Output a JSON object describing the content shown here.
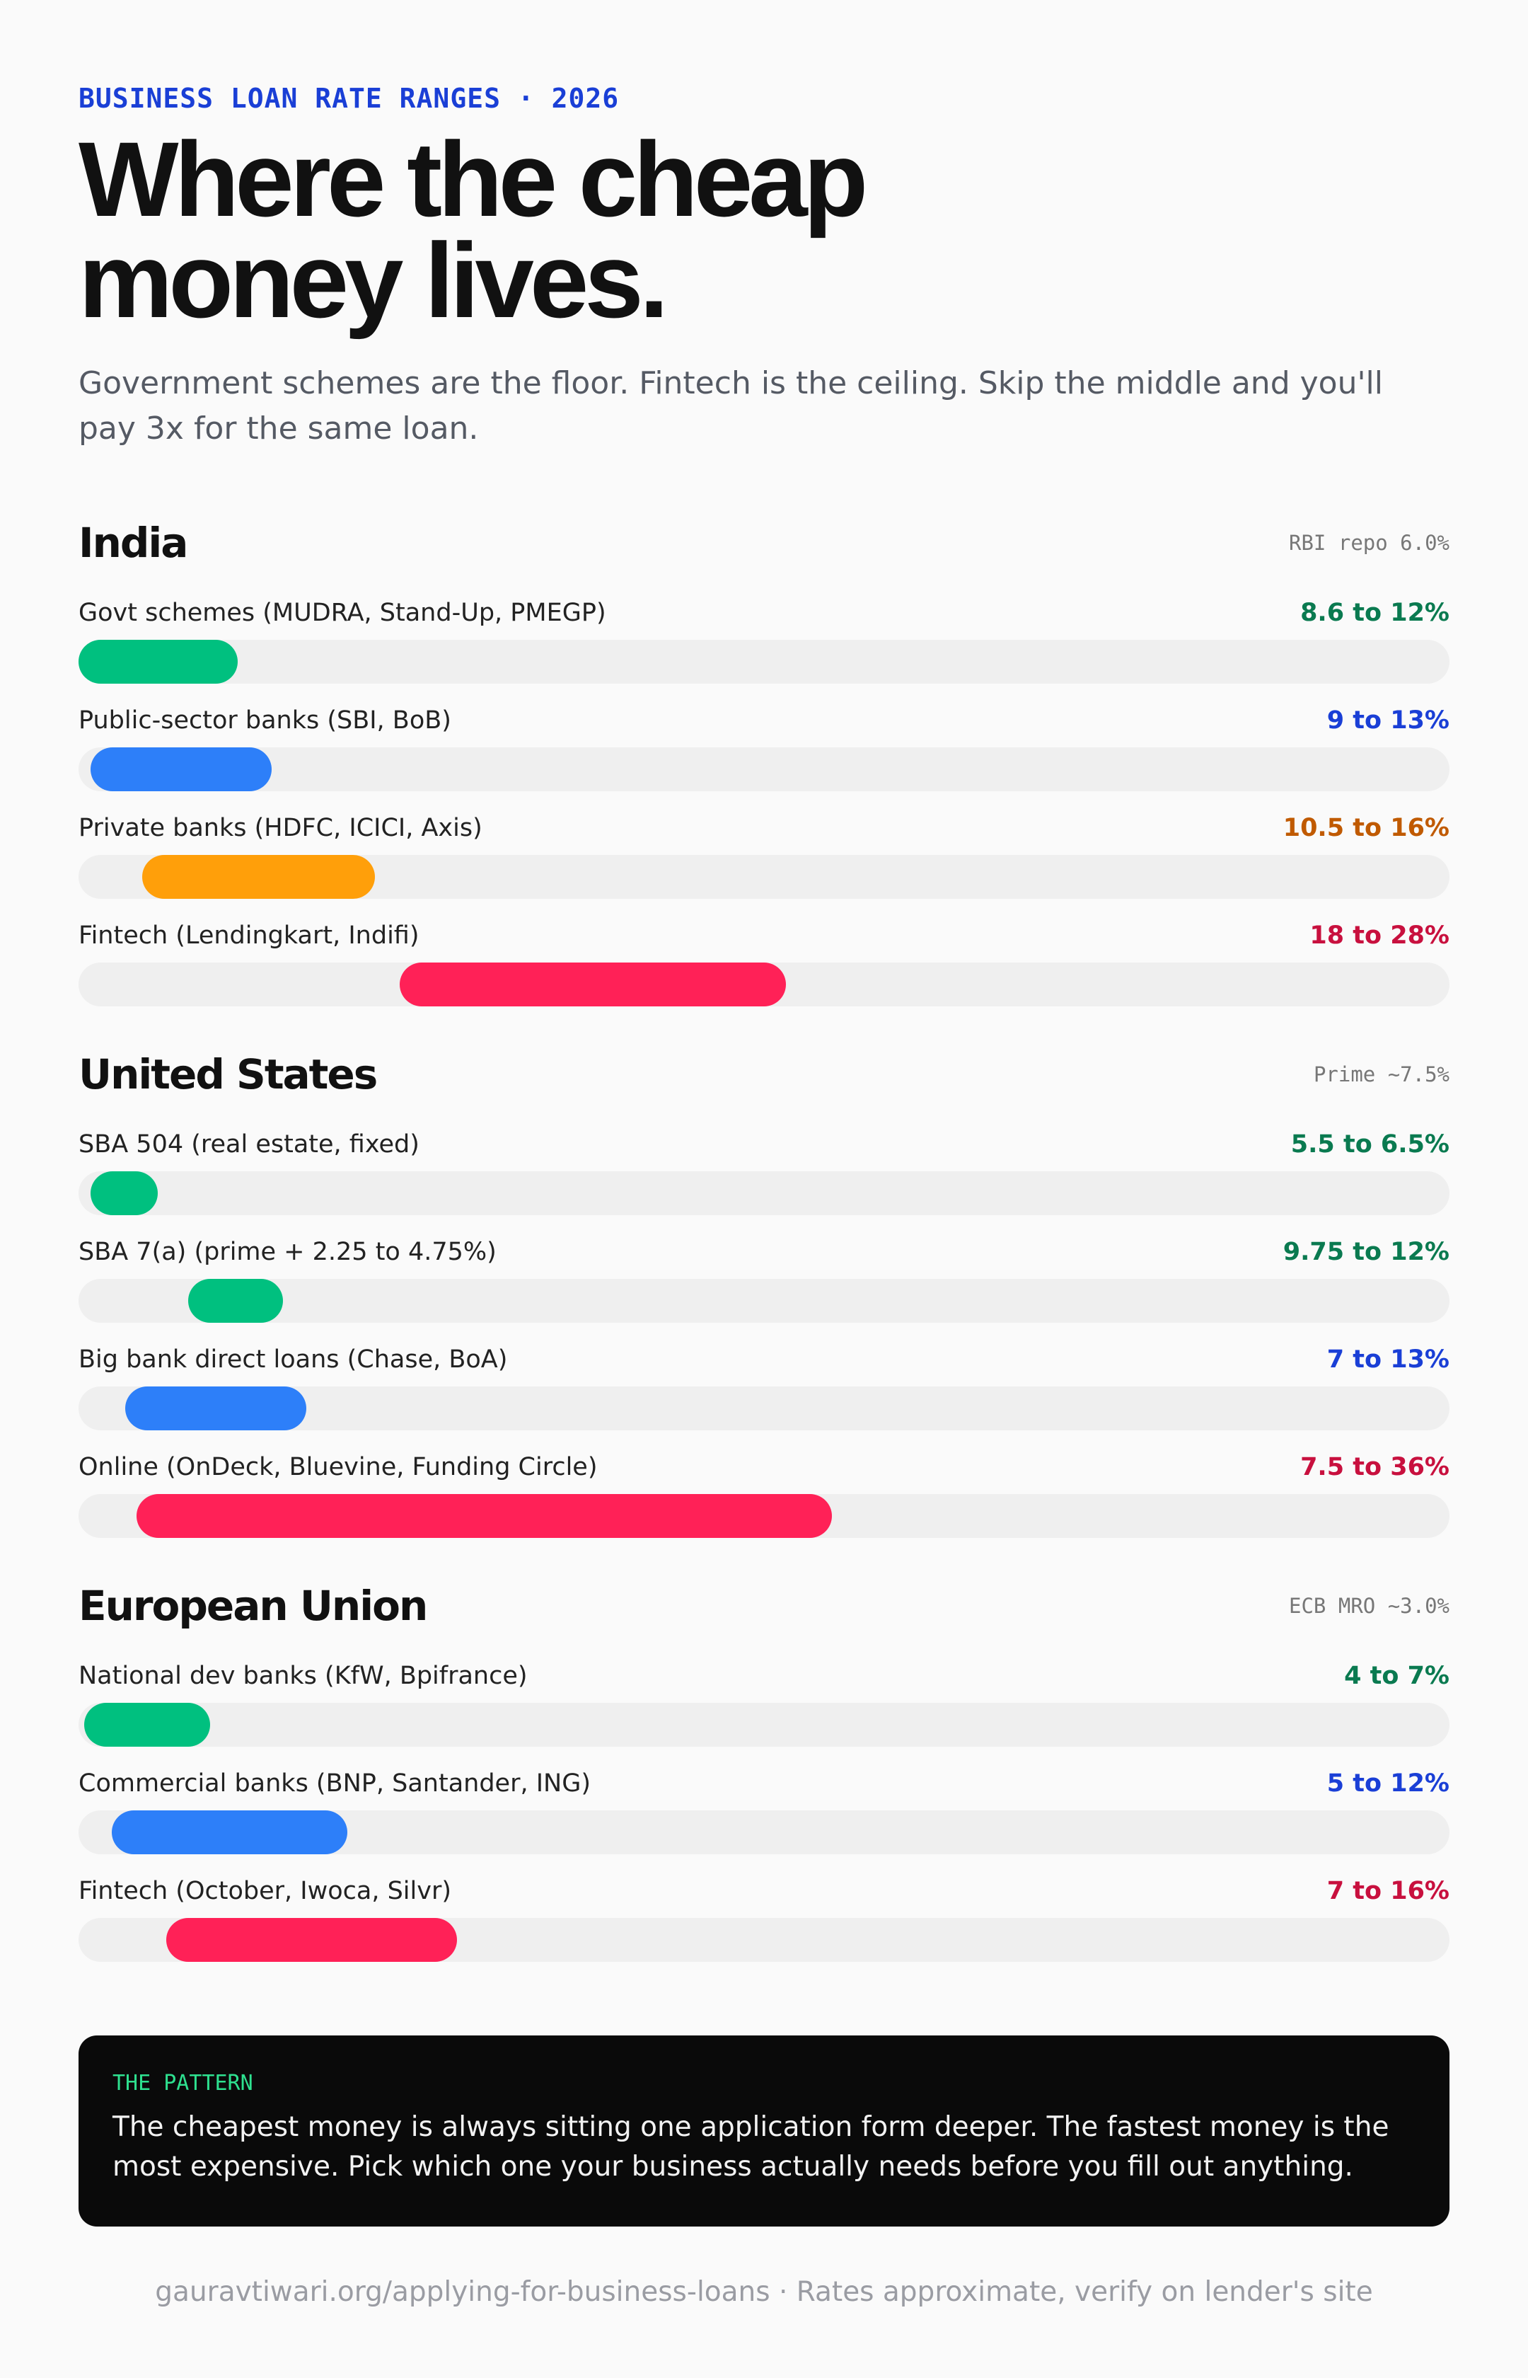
{
  "header": {
    "kicker": "BUSINESS LOAN RATE RANGES · 2026",
    "title": "Where the cheap money lives.",
    "subtitle": "Government schemes are the floor. Fintech is the ceiling. Skip the middle and you'll pay 3x for the same loan."
  },
  "chart_data": [
    {
      "type": "range-bar",
      "title": "India",
      "note": "RBI repo 6.0%",
      "xlim": [
        8,
        48
      ],
      "categories": [
        "Govt schemes (MUDRA, Stand-Up, PMEGP)",
        "Public-sector banks (SBI, BoB)",
        "Private banks (HDFC, ICICI, Axis)",
        "Fintech (Lendingkart, Indifi)"
      ],
      "values": [
        [
          8.6,
          12
        ],
        [
          9,
          13
        ],
        [
          10.5,
          16
        ],
        [
          18,
          28
        ]
      ],
      "value_labels": [
        "8.6 to 12%",
        "9 to 13%",
        "10.5 to 16%",
        "18 to 28%"
      ],
      "colors": [
        "#00c07f",
        "#2d7ff9",
        "#ff9f0a",
        "#ff2157"
      ],
      "label_colors": [
        "#0a7a50",
        "#1a3fd6",
        "#c05a00",
        "#c8103e"
      ]
    },
    {
      "type": "range-bar",
      "title": "United States",
      "note": "Prime ~7.5%",
      "xlim": [
        4,
        64
      ],
      "categories": [
        "SBA 504 (real estate, fixed)",
        "SBA 7(a) (prime + 2.25 to 4.75%)",
        "Big bank direct loans (Chase, BoA)",
        "Online (OnDeck, Bluevine, Funding Circle)"
      ],
      "values": [
        [
          5.5,
          6.5
        ],
        [
          9.75,
          12
        ],
        [
          7,
          13
        ],
        [
          7.5,
          36
        ]
      ],
      "value_labels": [
        "5.5 to 6.5%",
        "9.75 to 12%",
        "7 to 13%",
        "7.5 to 36%"
      ],
      "colors": [
        "#00c07f",
        "#00c07f",
        "#2d7ff9",
        "#ff2157"
      ],
      "label_colors": [
        "#0a7a50",
        "#0a7a50",
        "#1a3fd6",
        "#c8103e"
      ]
    },
    {
      "type": "range-bar",
      "title": "European Union",
      "note": "ECB MRO ~3.0%",
      "xlim": [
        3,
        53
      ],
      "categories": [
        "National dev banks (KfW, Bpifrance)",
        "Commercial banks (BNP, Santander, ING)",
        "Fintech (October, Iwoca, Silvr)"
      ],
      "values": [
        [
          4,
          7
        ],
        [
          5,
          12
        ],
        [
          7,
          16
        ]
      ],
      "value_labels": [
        "4 to 7%",
        "5 to 12%",
        "7 to 16%"
      ],
      "colors": [
        "#00c07f",
        "#2d7ff9",
        "#ff2157"
      ],
      "label_colors": [
        "#0a7a50",
        "#1a3fd6",
        "#c8103e"
      ]
    }
  ],
  "callout": {
    "label": "THE PATTERN",
    "text": "The cheapest money is always sitting one application form deeper. The fastest money is the most expensive. Pick which one your business actually needs before you fill out anything."
  },
  "footer": "gauravtiwari.org/applying-for-business-loans · Rates approximate, verify on lender's site"
}
